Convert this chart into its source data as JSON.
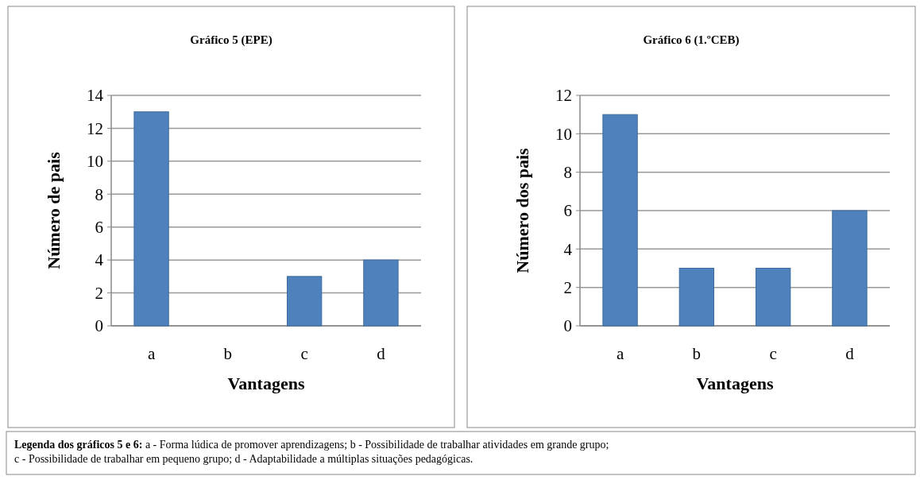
{
  "chart_data": [
    {
      "type": "bar",
      "title": "Gráfico 5 (EPE)",
      "xlabel": "Vantagens",
      "ylabel": "Número de pais",
      "categories": [
        "a",
        "b",
        "c",
        "d"
      ],
      "values": [
        13,
        0,
        3,
        4
      ],
      "color": "#4f81bd",
      "ylim": [
        0,
        14
      ],
      "yticks": [
        0,
        2,
        4,
        6,
        8,
        10,
        12,
        14
      ],
      "grid": "y"
    },
    {
      "type": "bar",
      "title": "Gráfico 6 (1.ºCEB)",
      "xlabel": "Vantagens",
      "ylabel": "Número dos pais",
      "categories": [
        "a",
        "b",
        "c",
        "d"
      ],
      "values": [
        11,
        3,
        3,
        6
      ],
      "color": "#4f81bd",
      "ylim": [
        0,
        12
      ],
      "yticks": [
        0,
        2,
        4,
        6,
        8,
        10,
        12
      ],
      "grid": "y"
    },
    {
      "type": "other",
      "annotations": [
        "Legenda dos gráficos 5 e 6:",
        "a - Forma lúdica de promover aprendizagens; b - Possibilidade de trabalhar atividades em grande grupo;",
        "c - Possibilidade de trabalhar em pequeno grupo; d - Adaptabilidade a múltiplas situações pedagógicas."
      ]
    }
  ]
}
